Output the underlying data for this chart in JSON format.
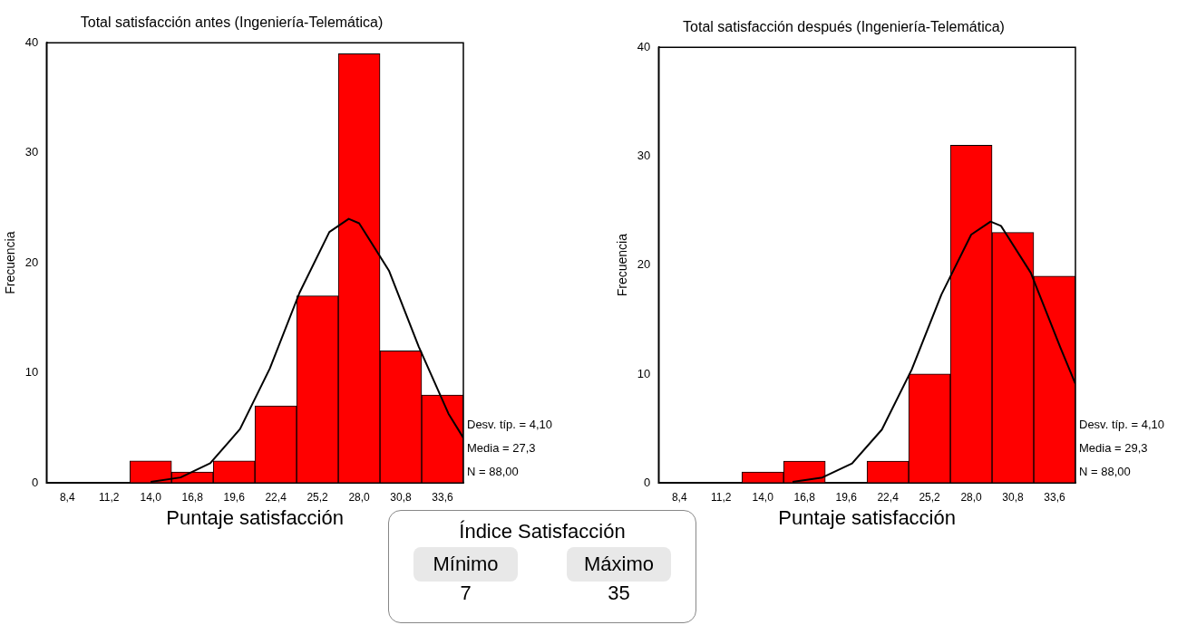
{
  "chart_data": [
    {
      "type": "histogram",
      "title": "Total satisfacción antes (Ingeniería-Telemática)",
      "xlabel": "Puntaje satisfacción",
      "ylabel": "Frecuencia",
      "bins": [
        7,
        9.8,
        12.6,
        15.4,
        18.2,
        21,
        23.8,
        26.6,
        29.4,
        32.2,
        35
      ],
      "values": [
        0,
        0,
        2,
        1,
        2,
        7,
        17,
        39,
        12,
        8
      ],
      "color": "#ff0000",
      "series": [
        {
          "type": "line",
          "color": "#000000",
          "x": [
            14,
            16,
            18,
            20,
            22,
            24,
            26,
            27.3,
            28,
            30,
            32,
            34,
            35
          ],
          "values": [
            0.1,
            0.5,
            1.8,
            4.9,
            10.4,
            17.3,
            22.8,
            24,
            23.6,
            19.3,
            12.4,
            6.3,
            4.1
          ]
        }
      ],
      "xlim": [
        7,
        35
      ],
      "xticks": [
        {
          "value": 8.4,
          "label": "8,4"
        },
        {
          "value": 11.2,
          "label": "11,2"
        },
        {
          "value": 14,
          "label": "14,0"
        },
        {
          "value": 16.8,
          "label": "16,8"
        },
        {
          "value": 19.6,
          "label": "19,6"
        },
        {
          "value": 22.4,
          "label": "22,4"
        },
        {
          "value": 25.2,
          "label": "25,2"
        },
        {
          "value": 28,
          "label": "28,0"
        },
        {
          "value": 30.8,
          "label": "30,8"
        },
        {
          "value": 33.6,
          "label": "33,6"
        }
      ],
      "ylim": [
        0,
        40
      ],
      "yticks": [
        0,
        10,
        20,
        30,
        40
      ],
      "annotations": [
        "Desv. típ. = 4,10",
        "Media = 27,3",
        "N = 88,00"
      ]
    },
    {
      "type": "histogram",
      "title": "Total satisfacción después (Ingeniería-Telemática)",
      "xlabel": "Puntaje satisfacción",
      "ylabel": "Frecuencia",
      "bins": [
        7,
        9.8,
        12.6,
        15.4,
        18.2,
        21,
        23.8,
        26.6,
        29.4,
        32.2,
        35
      ],
      "values": [
        0,
        0,
        1,
        2,
        0,
        2,
        10,
        31,
        23,
        19
      ],
      "color": "#ff0000",
      "series": [
        {
          "type": "line",
          "color": "#000000",
          "x": [
            16,
            18,
            20,
            22,
            24,
            26,
            28,
            29.3,
            30,
            32,
            34,
            35
          ],
          "values": [
            0.1,
            0.5,
            1.8,
            4.9,
            10.4,
            17.3,
            22.8,
            24,
            23.6,
            19.3,
            12.4,
            9.1
          ]
        }
      ],
      "xlim": [
        7,
        35
      ],
      "xticks": [
        {
          "value": 8.4,
          "label": "8,4"
        },
        {
          "value": 11.2,
          "label": "11,2"
        },
        {
          "value": 14,
          "label": "14,0"
        },
        {
          "value": 16.8,
          "label": "16,8"
        },
        {
          "value": 19.6,
          "label": "19,6"
        },
        {
          "value": 22.4,
          "label": "22,4"
        },
        {
          "value": 25.2,
          "label": "25,2"
        },
        {
          "value": 28,
          "label": "28,0"
        },
        {
          "value": 30.8,
          "label": "30,8"
        },
        {
          "value": 33.6,
          "label": "33,6"
        }
      ],
      "ylim": [
        0,
        40
      ],
      "yticks": [
        0,
        10,
        20,
        30,
        40
      ],
      "annotations": [
        "Desv. típ. = 4,10",
        "Media = 29,3",
        "N = 88,00"
      ]
    },
    {
      "type": "other",
      "title": "Índice Satisfacción",
      "annotations": [
        "Mínimo",
        "7",
        "Máximo",
        "35"
      ]
    }
  ]
}
